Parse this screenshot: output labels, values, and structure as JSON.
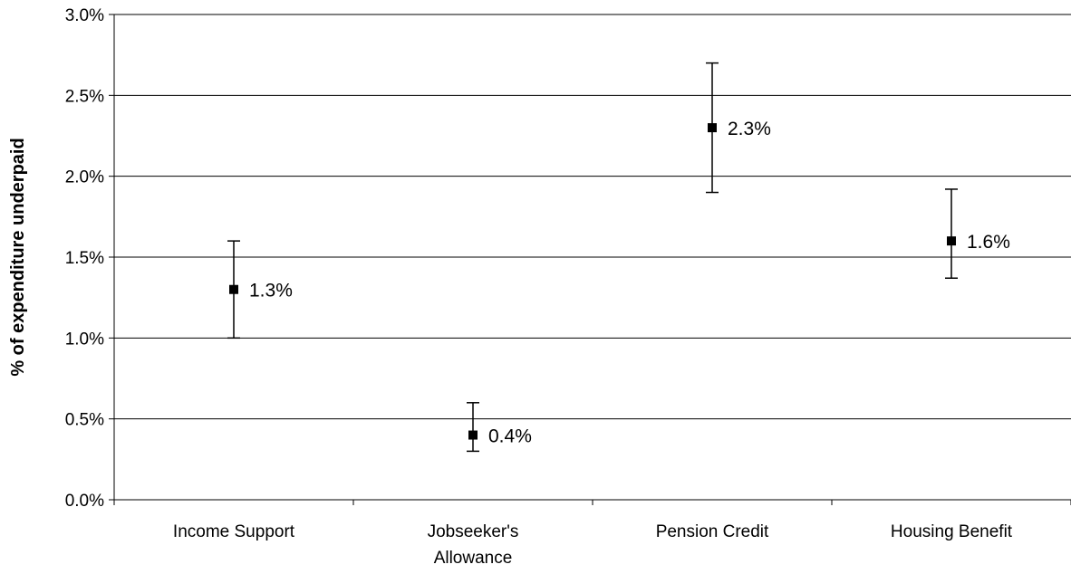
{
  "chart_data": {
    "type": "scatter",
    "title": "",
    "xlabel": "",
    "ylabel": "% of expenditure underpaid",
    "ylim": [
      0,
      3.0
    ],
    "y_ticks": [
      "0.0%",
      "0.5%",
      "1.0%",
      "1.5%",
      "2.0%",
      "2.5%",
      "3.0%"
    ],
    "grid": true,
    "legend": "none",
    "marker": "square",
    "marker_color": "#000000",
    "categories": [
      [
        "Income Support"
      ],
      [
        "Jobseeker's",
        "Allowance"
      ],
      [
        "Pension Credit"
      ],
      [
        "Housing Benefit"
      ]
    ],
    "values": [
      1.3,
      0.4,
      2.3,
      1.6
    ],
    "error_low": [
      1.0,
      0.3,
      1.9,
      1.37
    ],
    "error_high": [
      1.6,
      0.6,
      2.7,
      1.92
    ],
    "data_labels": [
      "1.3%",
      "0.4%",
      "2.3%",
      "1.6%"
    ]
  }
}
